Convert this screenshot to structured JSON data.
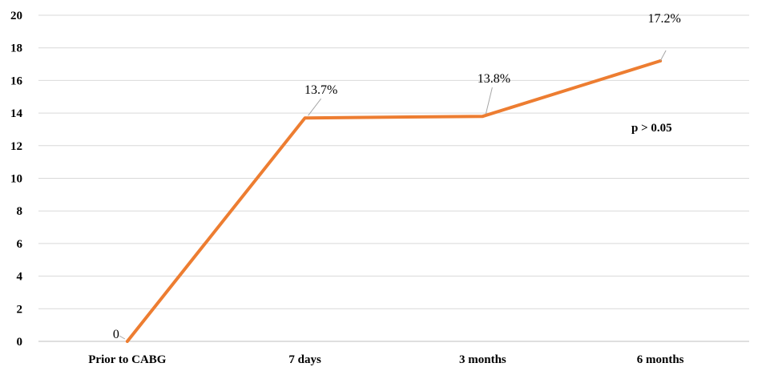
{
  "chart_data": {
    "type": "line",
    "categories": [
      "Prior to CABG",
      "7 days",
      "3 months",
      "6 months"
    ],
    "series": [
      {
        "values": [
          0,
          13.7,
          13.8,
          17.2
        ],
        "color": "#ED7D31"
      }
    ],
    "data_labels": [
      "0",
      "13.7%",
      "13.8%",
      "17.2%"
    ],
    "yticks": [
      0,
      2,
      4,
      6,
      8,
      10,
      12,
      14,
      16,
      18,
      20
    ],
    "ylim": [
      0,
      20
    ],
    "grid": true,
    "annotation": "p > 0.05",
    "title": "",
    "xlabel": "",
    "ylabel": ""
  }
}
